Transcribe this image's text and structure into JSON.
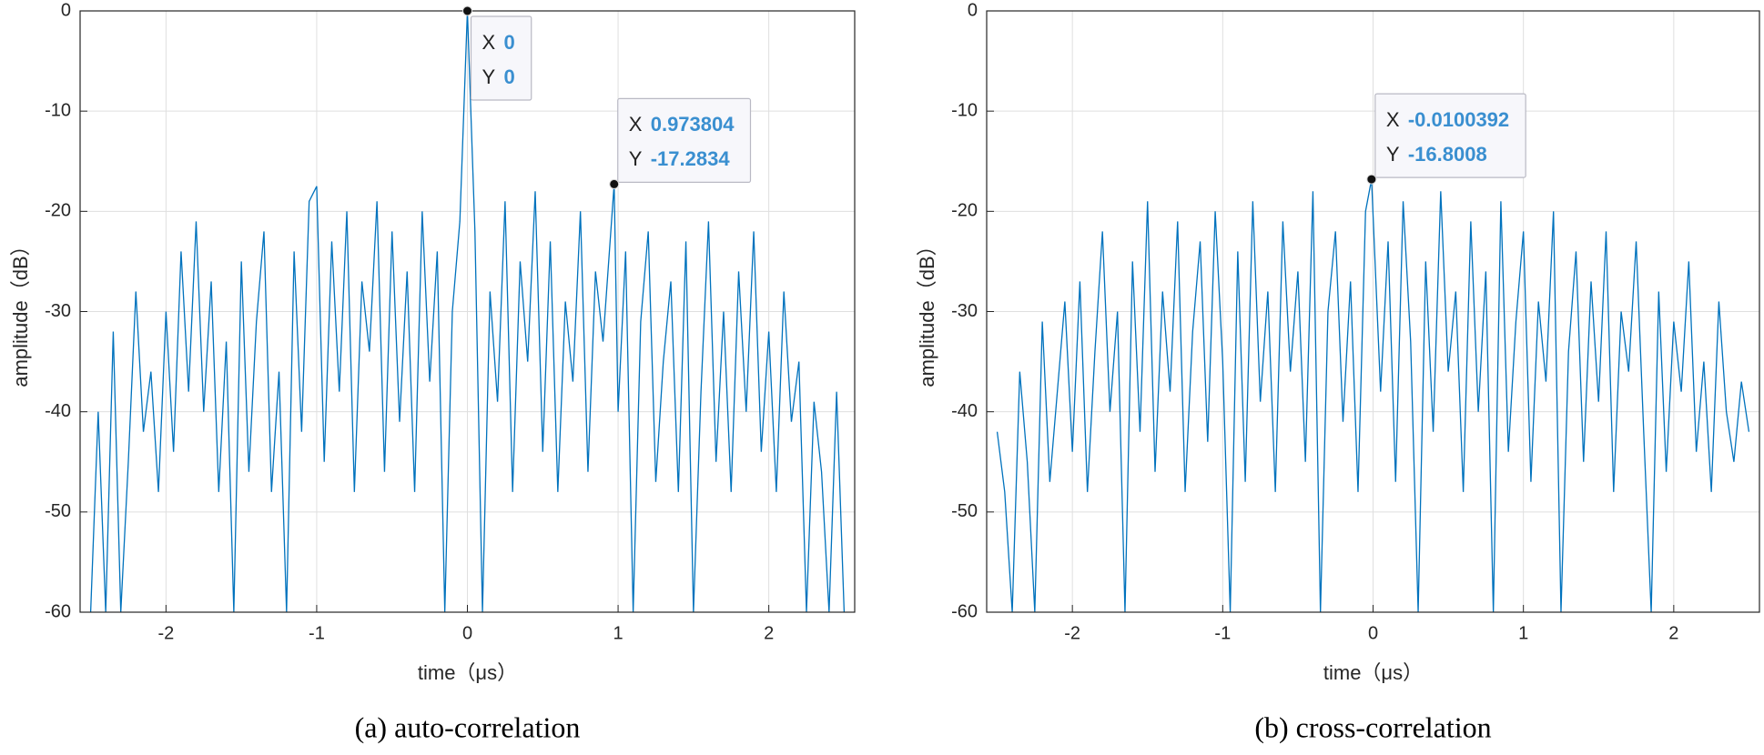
{
  "chart_data": [
    {
      "type": "line",
      "caption": "(a) auto-correlation",
      "xlabel": "time（μs）",
      "ylabel": "amplitude（dB）",
      "color": "#0072bd",
      "grid": true,
      "xlim": [
        -2.57,
        2.57
      ],
      "ylim": [
        -60,
        0
      ],
      "xticks": [
        -2,
        -1,
        0,
        1,
        2
      ],
      "yticks": [
        -60,
        -50,
        -40,
        -30,
        -20,
        -10,
        0
      ],
      "x": [
        -2.5,
        -2.45,
        -2.4,
        -2.35,
        -2.3,
        -2.25,
        -2.2,
        -2.15,
        -2.1,
        -2.05,
        -2,
        -1.95,
        -1.9,
        -1.85,
        -1.8,
        -1.75,
        -1.7,
        -1.65,
        -1.6,
        -1.55,
        -1.5,
        -1.45,
        -1.4,
        -1.35,
        -1.3,
        -1.25,
        -1.2,
        -1.15,
        -1.1,
        -1.05,
        -1,
        -0.95,
        -0.9,
        -0.85,
        -0.8,
        -0.75,
        -0.7,
        -0.65,
        -0.6,
        -0.55,
        -0.5,
        -0.45,
        -0.4,
        -0.35,
        -0.3,
        -0.25,
        -0.2,
        -0.15,
        -0.1,
        -0.05,
        0,
        0.05,
        0.1,
        0.15,
        0.2,
        0.25,
        0.3,
        0.35,
        0.4,
        0.45,
        0.5,
        0.55,
        0.6,
        0.65,
        0.7,
        0.75,
        0.8,
        0.85,
        0.9,
        0.973804,
        1,
        1.05,
        1.1,
        1.15,
        1.2,
        1.25,
        1.3,
        1.35,
        1.4,
        1.45,
        1.5,
        1.55,
        1.6,
        1.65,
        1.7,
        1.75,
        1.8,
        1.85,
        1.9,
        1.95,
        2,
        2.05,
        2.1,
        2.15,
        2.2,
        2.25,
        2.3,
        2.35,
        2.4,
        2.45,
        2.5
      ],
      "values": [
        -60,
        -40,
        -60,
        -32,
        -60,
        -45,
        -28,
        -42,
        -36,
        -48,
        -30,
        -44,
        -24,
        -38,
        -21,
        -40,
        -27,
        -48,
        -33,
        -60,
        -25,
        -46,
        -31,
        -22,
        -48,
        -36,
        -60,
        -24,
        -42,
        -19,
        -17.5,
        -45,
        -23,
        -38,
        -20,
        -48,
        -27,
        -34,
        -19,
        -46,
        -22,
        -41,
        -26,
        -48,
        -20,
        -37,
        -24,
        -60,
        -30,
        -21,
        0,
        -22,
        -60,
        -28,
        -39,
        -19,
        -48,
        -25,
        -35,
        -18,
        -44,
        -23,
        -48,
        -29,
        -37,
        -20,
        -46,
        -26,
        -33,
        -17.2834,
        -40,
        -24,
        -60,
        -31,
        -22,
        -47,
        -35,
        -27,
        -48,
        -23,
        -60,
        -38,
        -21,
        -45,
        -30,
        -48,
        -26,
        -40,
        -22,
        -44,
        -32,
        -48,
        -28,
        -41,
        -35,
        -60,
        -39,
        -46,
        -60,
        -38,
        -60
      ],
      "annotations": [
        {
          "x_label": "X",
          "x": 0,
          "y_label": "Y",
          "y": 0
        },
        {
          "x_label": "X",
          "x": 0.973804,
          "y_label": "Y",
          "y": -17.2834
        }
      ]
    },
    {
      "type": "line",
      "caption": "(b) cross-correlation",
      "xlabel": "time（μs）",
      "ylabel": "amplitude（dB）",
      "color": "#0072bd",
      "grid": true,
      "xlim": [
        -2.57,
        2.57
      ],
      "ylim": [
        -60,
        0
      ],
      "xticks": [
        -2,
        -1,
        0,
        1,
        2
      ],
      "yticks": [
        -60,
        -50,
        -40,
        -30,
        -20,
        -10,
        0
      ],
      "x": [
        -2.5,
        -2.45,
        -2.4,
        -2.35,
        -2.3,
        -2.25,
        -2.2,
        -2.15,
        -2.1,
        -2.05,
        -2,
        -1.95,
        -1.9,
        -1.85,
        -1.8,
        -1.75,
        -1.7,
        -1.65,
        -1.6,
        -1.55,
        -1.5,
        -1.45,
        -1.4,
        -1.35,
        -1.3,
        -1.25,
        -1.2,
        -1.15,
        -1.1,
        -1.05,
        -1,
        -0.95,
        -0.9,
        -0.85,
        -0.8,
        -0.75,
        -0.7,
        -0.65,
        -0.6,
        -0.55,
        -0.5,
        -0.45,
        -0.4,
        -0.35,
        -0.3,
        -0.25,
        -0.2,
        -0.15,
        -0.1,
        -0.05,
        -0.0100392,
        0.05,
        0.1,
        0.15,
        0.2,
        0.25,
        0.3,
        0.35,
        0.4,
        0.45,
        0.5,
        0.55,
        0.6,
        0.65,
        0.7,
        0.75,
        0.8,
        0.85,
        0.9,
        0.95,
        1,
        1.05,
        1.1,
        1.15,
        1.2,
        1.25,
        1.3,
        1.35,
        1.4,
        1.45,
        1.5,
        1.55,
        1.6,
        1.65,
        1.7,
        1.75,
        1.8,
        1.85,
        1.9,
        1.95,
        2,
        2.05,
        2.1,
        2.15,
        2.2,
        2.25,
        2.3,
        2.35,
        2.4,
        2.45,
        2.5
      ],
      "values": [
        -42,
        -48,
        -60,
        -36,
        -45,
        -60,
        -31,
        -47,
        -38,
        -29,
        -44,
        -27,
        -48,
        -34,
        -22,
        -40,
        -30,
        -60,
        -25,
        -42,
        -19,
        -46,
        -28,
        -38,
        -21,
        -48,
        -32,
        -23,
        -43,
        -20,
        -35,
        -60,
        -24,
        -47,
        -19,
        -39,
        -28,
        -48,
        -21,
        -36,
        -26,
        -45,
        -18,
        -60,
        -30,
        -22,
        -41,
        -27,
        -48,
        -20,
        -16.8008,
        -38,
        -23,
        -47,
        -19,
        -33,
        -60,
        -25,
        -42,
        -18,
        -36,
        -28,
        -48,
        -21,
        -40,
        -26,
        -60,
        -19,
        -44,
        -31,
        -22,
        -47,
        -29,
        -37,
        -20,
        -60,
        -34,
        -24,
        -45,
        -27,
        -39,
        -22,
        -48,
        -30,
        -36,
        -23,
        -42,
        -60,
        -28,
        -46,
        -31,
        -38,
        -25,
        -44,
        -35,
        -48,
        -29,
        -40,
        -45,
        -37,
        -42
      ],
      "annotations": [
        {
          "x_label": "X",
          "x": -0.0100392,
          "y_label": "Y",
          "y": -16.8008
        }
      ]
    }
  ]
}
